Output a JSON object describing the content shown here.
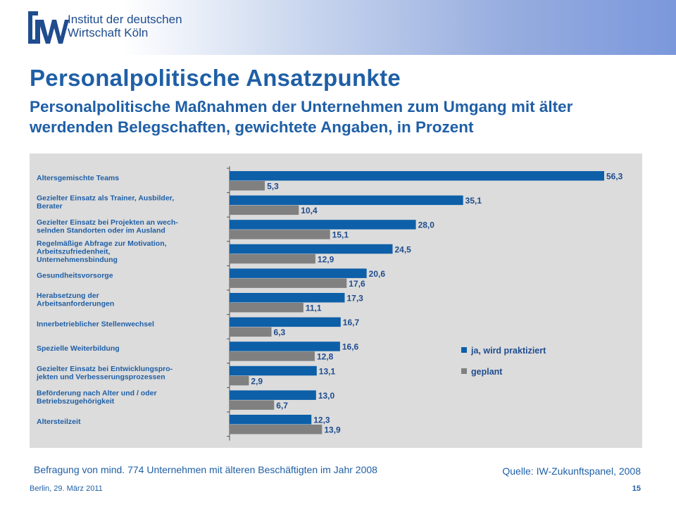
{
  "header": {
    "org_name_line1": "Institut der deutschen",
    "org_name_line2": "Wirtschaft Köln"
  },
  "title": "Personalpolitische  Ansatzpunkte",
  "subtitle_line1": "Personalpolitische Maßnahmen der Unternehmen zum Umgang mit älter",
  "subtitle_line2": "werdenden Belegschaften, gewichtete Angaben, in Prozent",
  "chart_data": {
    "type": "bar",
    "orientation": "horizontal",
    "title": "",
    "xlabel": "",
    "ylabel": "",
    "xlim": [
      0,
      56.3
    ],
    "categories": [
      [
        "Altersgemischte  Teams"
      ],
      [
        "Gezielter  Einsatz als Trainer, Ausbilder,",
        "Berater"
      ],
      [
        "Gezielter  Einsatz bei Projekten an wech-",
        "selnden  Standorten  oder im Ausland"
      ],
      [
        "Regelmäßige Abfrage  zur Motivation,",
        "Arbeitszufriedenheit,",
        "Unternehmensbindung"
      ],
      [
        "Gesundheitsvorsorge"
      ],
      [
        "Herabsetzung  der",
        "Arbeitsanforderungen"
      ],
      [
        "Innerbetrieblicher  Stellenwechsel"
      ],
      [
        "Spezielle Weiterbildung"
      ],
      [
        "Gezielter Einsatz bei Entwicklungspro-",
        "jekten und Verbesserungsprozessen"
      ],
      [
        "Beförderung  nach Alter und / oder",
        "Betriebszugehörigkeit"
      ],
      [
        "Altersteilzeit"
      ]
    ],
    "series": [
      {
        "name": "ja, wird praktiziert",
        "color": "#0d5fa8",
        "values": [
          56.3,
          35.1,
          28.0,
          24.5,
          20.6,
          17.3,
          16.7,
          16.6,
          13.1,
          13.0,
          12.3
        ],
        "labels": [
          "56,3",
          "35,1",
          "28,0",
          "24,5",
          "20,6",
          "17,3",
          "16,7",
          "16,6",
          "13,1",
          "13,0",
          "12,3"
        ]
      },
      {
        "name": "geplant",
        "color": "#808080",
        "values": [
          5.3,
          10.4,
          15.1,
          12.9,
          17.6,
          11.1,
          6.3,
          12.8,
          2.9,
          6.7,
          13.9
        ],
        "labels": [
          "5,3",
          "10,4",
          "15,1",
          "12,9",
          "17,6",
          "11,1",
          "6,3",
          "12,8",
          "2,9",
          "6,7",
          "13,9"
        ]
      }
    ],
    "legend_position": "right-center"
  },
  "footnote": "Befragung von mind. 774 Unternehmen mit älteren Beschäftigten im Jahr 2008",
  "source": "Quelle: IW-Zukunftspanel, 2008",
  "footer_date": "Berlin, 29. März 2011",
  "page_number": "15"
}
